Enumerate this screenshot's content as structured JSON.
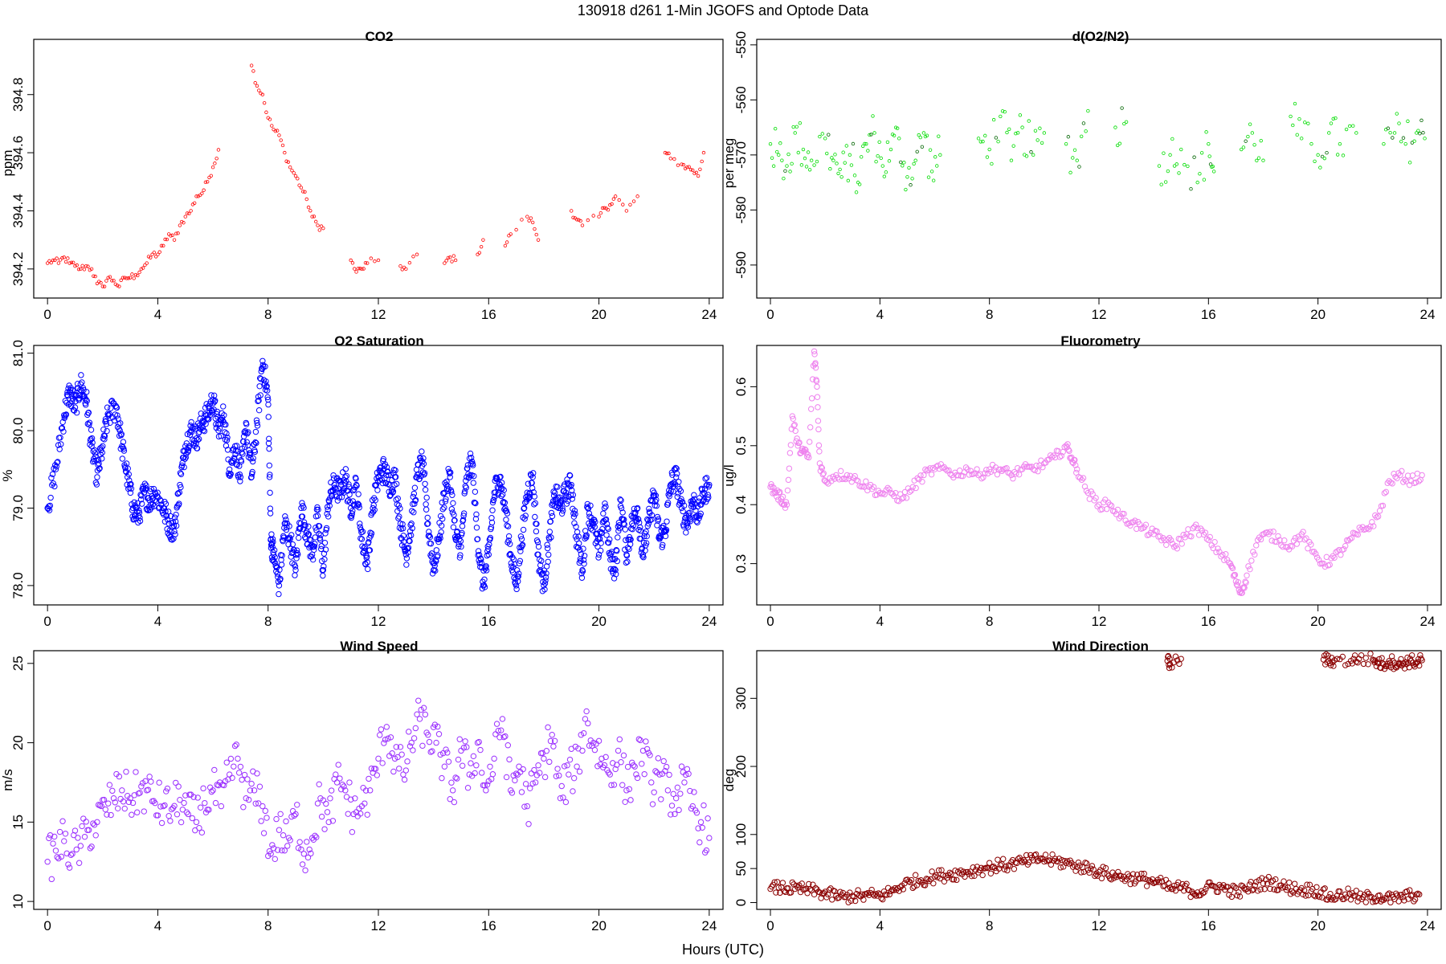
{
  "figure": {
    "suptitle": "130918   d261   1-Min  JGOFS and Optode Data",
    "xlabel": "Hours (UTC)"
  },
  "chart_data": [
    {
      "type": "scatter",
      "title": "CO2",
      "ylabel": "ppm",
      "color": "#ff0000",
      "marker_size": "small",
      "xlim": [
        -0.5,
        24.5
      ],
      "ylim": [
        394.1,
        394.99
      ],
      "xticks": [
        0,
        4,
        8,
        12,
        16,
        20,
        24
      ],
      "yticks": [
        394.2,
        394.4,
        394.6,
        394.8
      ],
      "ytick_labels": [
        "394.2",
        "394.4",
        "394.6",
        "394.8"
      ],
      "ytick_rotation": "vertical",
      "grid": false,
      "x": [
        0.0,
        0.2,
        0.4,
        0.6,
        0.8,
        1.0,
        1.2,
        1.4,
        1.6,
        1.8,
        2.0,
        2.2,
        2.4,
        2.6,
        2.8,
        3.0,
        3.2,
        3.4,
        3.6,
        3.8,
        4.0,
        4.2,
        4.4,
        4.6,
        4.8,
        5.0,
        5.2,
        5.4,
        5.6,
        5.8,
        6.0,
        6.2,
        7.4,
        7.6,
        7.8,
        8.0,
        8.2,
        8.4,
        8.6,
        8.8,
        9.0,
        9.2,
        9.4,
        9.6,
        9.8,
        10.0,
        11.0,
        11.2,
        11.4,
        11.6,
        12.0,
        12.8,
        13.0,
        13.4,
        14.4,
        14.6,
        14.8,
        15.6,
        15.8,
        16.6,
        16.8,
        17.4,
        17.6,
        17.8,
        19.0,
        19.2,
        19.4,
        20.0,
        20.2,
        20.4,
        20.6,
        21.0,
        21.4,
        22.4,
        22.6,
        23.0,
        23.2,
        23.4,
        23.6,
        23.8
      ],
      "y": [
        394.22,
        394.23,
        394.22,
        394.24,
        394.22,
        394.21,
        394.2,
        394.21,
        394.2,
        394.15,
        394.14,
        394.17,
        394.16,
        394.14,
        394.17,
        394.17,
        394.18,
        394.2,
        394.22,
        394.25,
        394.25,
        394.28,
        394.32,
        394.3,
        394.35,
        394.38,
        394.4,
        394.45,
        394.46,
        394.5,
        394.55,
        394.61,
        394.9,
        394.83,
        394.8,
        394.72,
        394.68,
        394.66,
        394.6,
        394.55,
        394.52,
        394.48,
        394.44,
        394.38,
        394.35,
        394.34,
        394.23,
        394.19,
        394.2,
        394.22,
        394.23,
        394.21,
        394.2,
        394.25,
        394.22,
        394.24,
        394.23,
        394.25,
        394.3,
        394.28,
        394.32,
        394.38,
        394.36,
        394.3,
        394.4,
        394.37,
        394.35,
        394.38,
        394.41,
        394.42,
        394.45,
        394.4,
        394.45,
        394.6,
        394.58,
        394.56,
        394.55,
        394.54,
        394.52,
        394.6
      ],
      "x_range": [
        0,
        24
      ]
    },
    {
      "type": "scatter",
      "title": "d(O2/N2)",
      "ylabel": "per meg",
      "color": "#00dd00",
      "secondary_color": "#006400",
      "marker_size": "small",
      "xlim": [
        -0.5,
        24.5
      ],
      "ylim": [
        -596,
        -549
      ],
      "xticks": [
        0,
        4,
        8,
        12,
        16,
        20,
        24
      ],
      "yticks": [
        -590,
        -580,
        -570,
        -560,
        -550
      ],
      "ytick_labels": [
        "-590",
        "-580",
        "-570",
        "-560",
        "-550"
      ],
      "ytick_rotation": "vertical",
      "grid": false,
      "x": [
        0.0,
        0.3,
        0.6,
        0.9,
        1.2,
        1.5,
        2.0,
        2.3,
        2.6,
        2.9,
        3.2,
        3.5,
        3.8,
        4.1,
        4.4,
        4.7,
        5.0,
        5.3,
        5.6,
        5.9,
        6.2,
        7.6,
        8.0,
        8.4,
        8.8,
        9.2,
        9.6,
        10.0,
        10.8,
        11.2,
        11.6,
        12.6,
        13.0,
        14.2,
        14.6,
        15.0,
        15.6,
        16.0,
        16.2,
        17.2,
        17.6,
        18.0,
        19.0,
        19.4,
        20.0,
        20.4,
        20.8,
        21.4,
        22.4,
        22.8,
        23.2,
        23.6,
        23.9
      ],
      "y": [
        -568,
        -570,
        -572,
        -566,
        -569,
        -571,
        -567,
        -571,
        -574,
        -570,
        -575,
        -568,
        -566,
        -572,
        -569,
        -567,
        -574,
        -571,
        -566,
        -573,
        -570,
        -567,
        -569,
        -563,
        -571,
        -565,
        -570,
        -566,
        -568,
        -571,
        -562,
        -565,
        -564,
        -572,
        -570,
        -569,
        -575,
        -568,
        -573,
        -569,
        -566,
        -571,
        -563,
        -567,
        -570,
        -566,
        -568,
        -566,
        -568,
        -566,
        -568,
        -566,
        -567
      ],
      "x_range": [
        0,
        24
      ]
    },
    {
      "type": "scatter",
      "title": "O2 Saturation",
      "ylabel": "%",
      "color": "#0000ff",
      "marker_size": "medium",
      "xlim": [
        -0.5,
        24.5
      ],
      "ylim": [
        77.75,
        81.1
      ],
      "xticks": [
        0,
        4,
        8,
        12,
        16,
        20,
        24
      ],
      "yticks": [
        78.0,
        79.0,
        80.0,
        81.0
      ],
      "ytick_labels": [
        "78.0",
        "79.0",
        "80.0",
        "81.0"
      ],
      "ytick_rotation": "vertical",
      "grid": false,
      "x": [
        0.0,
        0.3,
        0.6,
        0.8,
        1.0,
        1.2,
        1.4,
        1.6,
        1.8,
        2.0,
        2.2,
        2.5,
        2.7,
        2.9,
        3.1,
        3.3,
        3.5,
        3.7,
        3.9,
        4.2,
        4.4,
        4.6,
        4.8,
        5.0,
        5.2,
        5.4,
        5.6,
        5.8,
        6.0,
        6.2,
        6.4,
        6.6,
        6.8,
        7.0,
        7.2,
        7.4,
        7.6,
        7.8,
        8.0,
        8.1,
        8.2,
        8.4,
        8.6,
        8.8,
        9.0,
        9.2,
        9.4,
        9.6,
        9.8,
        10.0,
        10.2,
        10.4,
        10.6,
        10.8,
        11.0,
        11.2,
        11.4,
        11.6,
        11.8,
        12.0,
        12.2,
        12.4,
        12.6,
        12.8,
        13.0,
        13.2,
        13.4,
        13.6,
        13.8,
        14.0,
        14.2,
        14.4,
        14.6,
        14.8,
        15.0,
        15.2,
        15.4,
        15.6,
        15.8,
        16.0,
        16.2,
        16.4,
        16.6,
        16.8,
        17.0,
        17.2,
        17.4,
        17.6,
        17.8,
        18.0,
        18.2,
        18.4,
        18.6,
        18.8,
        19.0,
        19.2,
        19.4,
        19.6,
        19.8,
        20.0,
        20.2,
        20.4,
        20.6,
        20.8,
        21.0,
        21.2,
        21.4,
        21.6,
        21.8,
        22.0,
        22.2,
        22.4,
        22.6,
        22.8,
        23.0,
        23.2,
        23.4,
        23.6,
        23.8,
        24.0
      ],
      "y": [
        79.0,
        79.5,
        80.2,
        80.5,
        80.3,
        80.6,
        80.4,
        79.8,
        79.4,
        79.8,
        80.2,
        80.3,
        79.8,
        79.4,
        79.0,
        78.9,
        79.2,
        79.1,
        79.2,
        79.0,
        78.8,
        78.7,
        79.3,
        79.8,
        80.0,
        79.9,
        80.1,
        80.2,
        80.4,
        80.0,
        80.2,
        79.5,
        79.8,
        79.4,
        80.1,
        79.4,
        80.1,
        80.9,
        80.4,
        78.6,
        78.4,
        78.0,
        78.8,
        78.6,
        78.2,
        79.0,
        78.7,
        78.4,
        78.9,
        78.2,
        79.1,
        79.3,
        79.2,
        79.4,
        79.0,
        79.3,
        78.6,
        78.3,
        79.0,
        79.4,
        79.5,
        79.3,
        79.4,
        78.8,
        78.4,
        78.8,
        79.4,
        79.6,
        78.8,
        78.2,
        78.6,
        79.2,
        79.4,
        78.6,
        78.5,
        79.4,
        79.6,
        78.6,
        78.0,
        78.4,
        79.2,
        79.4,
        79.0,
        78.4,
        78.0,
        78.6,
        79.2,
        79.4,
        78.4,
        78.0,
        78.6,
        79.2,
        79.0,
        79.2,
        79.3,
        78.6,
        78.2,
        79.0,
        78.8,
        78.4,
        79.0,
        78.4,
        78.2,
        79.1,
        78.4,
        78.8,
        79.0,
        78.4,
        78.8,
        79.2,
        78.6,
        78.7,
        79.3,
        79.4,
        79.0,
        78.8,
        79.1,
        78.9,
        79.2,
        79.3
      ],
      "x_range": [
        0,
        24
      ]
    },
    {
      "type": "scatter",
      "title": "Fluorometry",
      "ylabel": "ug/l",
      "color": "#ee82ee",
      "marker_size": "medium",
      "xlim": [
        -0.5,
        24.5
      ],
      "ylim": [
        0.23,
        0.67
      ],
      "xticks": [
        0,
        4,
        8,
        12,
        16,
        20,
        24
      ],
      "yticks": [
        0.3,
        0.4,
        0.5,
        0.6
      ],
      "ytick_labels": [
        "0.3",
        "0.4",
        "0.5",
        "0.6"
      ],
      "ytick_rotation": "vertical",
      "grid": false,
      "x": [
        0.0,
        0.2,
        0.4,
        0.6,
        0.8,
        1.0,
        1.2,
        1.4,
        1.6,
        1.7,
        1.8,
        2.0,
        2.4,
        2.8,
        3.2,
        3.6,
        4.0,
        4.4,
        4.8,
        5.2,
        5.6,
        6.0,
        6.4,
        6.8,
        7.2,
        7.6,
        8.0,
        8.4,
        8.8,
        9.2,
        9.6,
        10.0,
        10.4,
        10.8,
        11.0,
        11.2,
        11.6,
        12.0,
        12.4,
        12.8,
        13.2,
        13.6,
        14.0,
        14.4,
        14.8,
        15.2,
        15.6,
        16.0,
        16.4,
        16.8,
        17.0,
        17.2,
        17.4,
        17.8,
        18.2,
        18.6,
        19.0,
        19.4,
        19.8,
        20.2,
        20.6,
        21.0,
        21.4,
        21.8,
        22.2,
        22.6,
        23.0,
        23.4,
        23.8
      ],
      "y": [
        0.43,
        0.42,
        0.41,
        0.4,
        0.55,
        0.5,
        0.49,
        0.48,
        0.66,
        0.6,
        0.47,
        0.44,
        0.45,
        0.45,
        0.44,
        0.43,
        0.42,
        0.42,
        0.41,
        0.43,
        0.45,
        0.46,
        0.46,
        0.45,
        0.46,
        0.45,
        0.46,
        0.46,
        0.45,
        0.46,
        0.46,
        0.47,
        0.48,
        0.5,
        0.48,
        0.46,
        0.42,
        0.4,
        0.4,
        0.38,
        0.37,
        0.36,
        0.35,
        0.34,
        0.33,
        0.35,
        0.36,
        0.34,
        0.32,
        0.3,
        0.27,
        0.25,
        0.28,
        0.34,
        0.35,
        0.34,
        0.33,
        0.35,
        0.32,
        0.3,
        0.31,
        0.33,
        0.35,
        0.36,
        0.38,
        0.44,
        0.45,
        0.44,
        0.45
      ],
      "x_range": [
        0,
        24
      ]
    },
    {
      "type": "scatter",
      "title": "Wind Speed",
      "ylabel": "m/s",
      "color": "#9b30ff",
      "marker_size": "medium",
      "xlim": [
        -0.5,
        24.5
      ],
      "ylim": [
        9.5,
        25.8
      ],
      "xticks": [
        0,
        4,
        8,
        12,
        16,
        20,
        24
      ],
      "yticks": [
        10,
        15,
        20,
        25
      ],
      "ytick_labels": [
        "10",
        "15",
        "20",
        "25"
      ],
      "ytick_rotation": "vertical",
      "grid": false,
      "x": [
        0.0,
        0.3,
        0.6,
        0.9,
        1.2,
        1.5,
        1.8,
        2.1,
        2.4,
        2.7,
        3.0,
        3.3,
        3.6,
        3.9,
        4.2,
        4.5,
        4.8,
        5.1,
        5.4,
        5.7,
        6.0,
        6.3,
        6.6,
        6.9,
        7.2,
        7.5,
        7.8,
        8.1,
        8.4,
        8.7,
        9.0,
        9.3,
        9.6,
        9.9,
        10.2,
        10.5,
        10.8,
        11.1,
        11.4,
        11.7,
        12.0,
        12.3,
        12.6,
        12.9,
        13.2,
        13.5,
        13.8,
        14.1,
        14.4,
        14.7,
        15.0,
        15.3,
        15.6,
        15.9,
        16.2,
        16.5,
        16.8,
        17.1,
        17.4,
        17.7,
        18.0,
        18.3,
        18.6,
        18.9,
        19.2,
        19.5,
        19.8,
        20.1,
        20.4,
        20.7,
        21.0,
        21.3,
        21.6,
        21.9,
        22.2,
        22.5,
        22.8,
        23.1,
        23.4,
        23.7,
        24.0
      ],
      "y": [
        12.5,
        13.2,
        13.8,
        13.0,
        13.5,
        14.5,
        15.0,
        15.8,
        16.5,
        17.0,
        16.5,
        16.8,
        17.0,
        16.2,
        16.0,
        15.8,
        16.4,
        15.5,
        15.0,
        16.2,
        17.0,
        16.0,
        18.0,
        19.0,
        16.5,
        17.0,
        16.0,
        13.0,
        14.5,
        13.5,
        15.5,
        13.0,
        14.0,
        16.5,
        15.0,
        17.5,
        17.0,
        15.5,
        16.0,
        17.0,
        19.0,
        21.0,
        19.0,
        18.0,
        20.0,
        21.5,
        20.5,
        20.0,
        18.5,
        17.0,
        19.5,
        18.0,
        20.0,
        17.0,
        19.0,
        21.5,
        17.0,
        18.5,
        16.0,
        17.5,
        19.0,
        20.5,
        16.5,
        18.0,
        18.5,
        21.5,
        20.0,
        19.0,
        18.0,
        19.5,
        17.0,
        18.5,
        19.5,
        17.5,
        18.0,
        17.0,
        16.5,
        17.5,
        16.0,
        15.0,
        14.0
      ],
      "x_range": [
        0,
        24
      ]
    },
    {
      "type": "scatter",
      "title": "Wind Direction",
      "ylabel": "deg",
      "color": "#8b0000",
      "marker_size": "medium",
      "xlim": [
        -0.5,
        24.5
      ],
      "ylim": [
        -10,
        370
      ],
      "xticks": [
        0,
        4,
        8,
        12,
        16,
        20,
        24
      ],
      "yticks": [
        0,
        50,
        100,
        200,
        300
      ],
      "ytick_labels": [
        "0",
        "50",
        "100",
        "200",
        "300"
      ],
      "ytick_rotation": "vertical",
      "grid": false,
      "x": [
        0.0,
        0.3,
        0.6,
        0.9,
        1.2,
        1.5,
        1.8,
        2.1,
        2.4,
        2.7,
        3.0,
        3.3,
        3.6,
        3.9,
        4.2,
        4.5,
        4.8,
        5.1,
        5.4,
        5.7,
        6.0,
        6.3,
        6.6,
        6.9,
        7.2,
        7.5,
        7.8,
        8.1,
        8.4,
        8.7,
        9.0,
        9.3,
        9.6,
        9.9,
        10.2,
        10.5,
        10.8,
        11.1,
        11.4,
        11.7,
        12.0,
        12.3,
        12.6,
        12.9,
        13.2,
        13.5,
        13.8,
        14.1,
        14.4,
        14.7,
        15.0,
        15.3,
        15.6,
        15.9,
        16.2,
        16.5,
        16.8,
        17.1,
        17.4,
        17.7,
        18.0,
        18.3,
        18.6,
        18.9,
        19.2,
        19.5,
        19.8,
        20.1,
        20.4,
        20.7,
        21.0,
        21.3,
        21.6,
        21.9,
        22.2,
        22.5,
        22.8,
        23.1,
        23.4,
        23.7,
        14.5,
        14.6,
        15.0,
        20.2,
        20.4,
        20.6,
        21.2,
        21.5,
        22.0,
        22.2,
        22.4,
        22.6,
        22.8,
        23.0,
        23.2,
        23.4,
        23.6,
        23.8
      ],
      "y": [
        20,
        22,
        21,
        20,
        19,
        18,
        15,
        12,
        10,
        8,
        10,
        9,
        11,
        10,
        12,
        18,
        25,
        30,
        32,
        35,
        38,
        40,
        42,
        43,
        45,
        48,
        50,
        52,
        55,
        55,
        58,
        60,
        62,
        65,
        62,
        60,
        58,
        55,
        52,
        50,
        45,
        42,
        40,
        38,
        36,
        35,
        33,
        30,
        25,
        20,
        22,
        18,
        15,
        20,
        24,
        22,
        18,
        15,
        20,
        25,
        28,
        30,
        25,
        22,
        20,
        18,
        20,
        15,
        8,
        10,
        12,
        10,
        5,
        8,
        10,
        6,
        5,
        8,
        10,
        12,
        355,
        350,
        358,
        357,
        355,
        356,
        355,
        358,
        357,
        352,
        350,
        355,
        352,
        350,
        353,
        355,
        352,
        356
      ],
      "x_range": [
        0,
        24
      ]
    }
  ]
}
